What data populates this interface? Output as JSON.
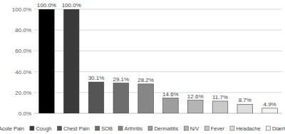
{
  "chart_data": {
    "type": "bar",
    "categories": [
      "Acute Pain",
      "Cough",
      "Chest Pain",
      "SOB",
      "Arthritis",
      "Dermatitis",
      "N/V",
      "Fever",
      "Headache",
      "Diarrhea"
    ],
    "values": [
      100.0,
      100.0,
      30.1,
      29.1,
      28.2,
      14.6,
      12.6,
      11.7,
      8.7,
      4.9
    ],
    "value_labels": [
      "100.0%",
      "100.0%",
      "30.1%",
      "29.1%",
      "28.2%",
      "14.6%",
      "12.6%",
      "11.7%",
      "8.7%",
      "4.9%"
    ],
    "colors": [
      "#000000",
      "#3a3a3a",
      "#555555",
      "#6e6e6e",
      "#868686",
      "#9e9e9e",
      "#b4b4b4",
      "#c9c9c9",
      "#dddddd",
      "#f2f2f2"
    ],
    "ylim": [
      0,
      100
    ],
    "yticks": [
      {
        "value": 0,
        "label": "0.0%"
      },
      {
        "value": 20,
        "label": "20.0%"
      },
      {
        "value": 40,
        "label": "40.0%"
      },
      {
        "value": 60,
        "label": "60.0%"
      },
      {
        "value": 80,
        "label": "80.0%"
      },
      {
        "value": 100,
        "label": "100.0%"
      }
    ],
    "grid": true,
    "data_labels": true,
    "tick_labels": "y",
    "legend": "bottom"
  }
}
